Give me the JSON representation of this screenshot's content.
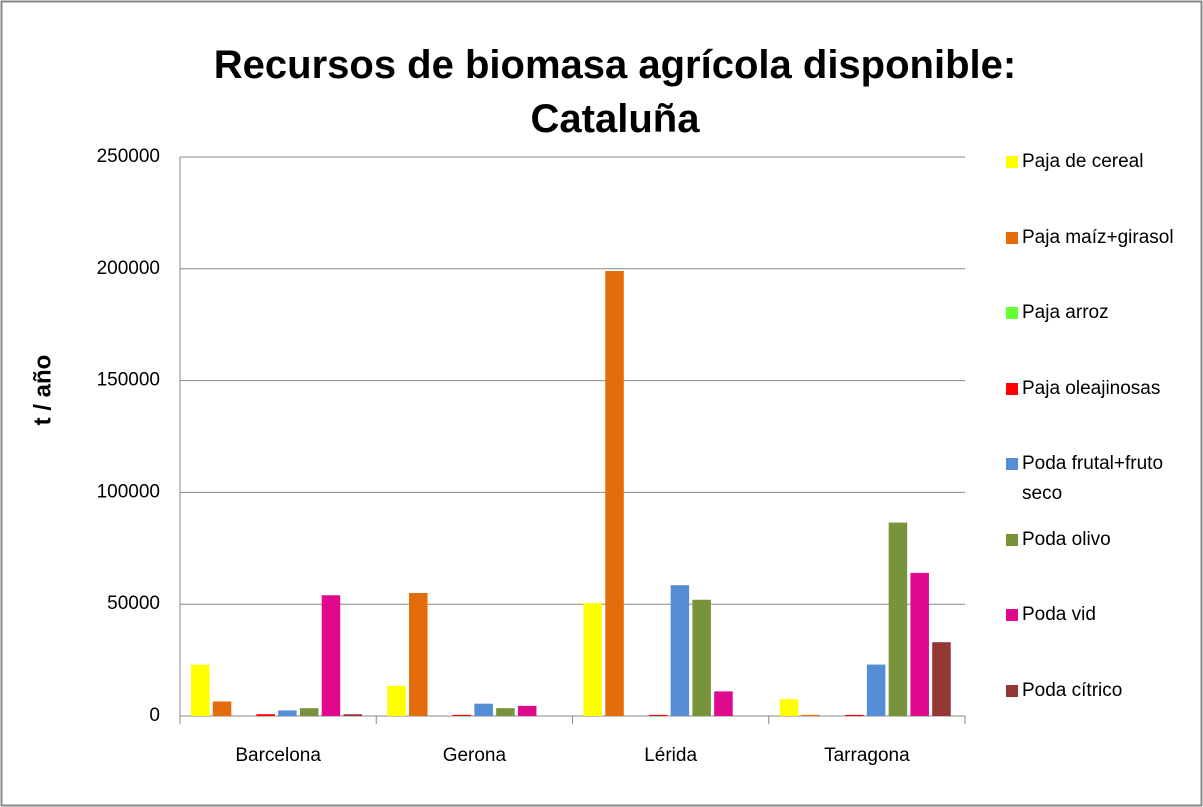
{
  "chart_data": {
    "type": "bar",
    "title": "Recursos de biomasa agrícola disponible: Cataluña",
    "y_label": "t / año",
    "categories": [
      "Barcelona",
      "Gerona",
      "Lérida",
      "Tarragona"
    ],
    "series": [
      {
        "name": "Paja de cereal",
        "color": "#ffff00",
        "values": [
          23000,
          13500,
          50500,
          7500
        ]
      },
      {
        "name": "Paja maíz+girasol",
        "color": "#e46c0a",
        "values": [
          6500,
          55000,
          199000,
          500
        ]
      },
      {
        "name": "Paja arroz",
        "color": "#66ff33",
        "values": [
          0,
          0,
          0,
          0
        ]
      },
      {
        "name": "Paja oleajinosas",
        "color": "#ff0000",
        "values": [
          800,
          500,
          500,
          500
        ]
      },
      {
        "name": "Poda frutal+fruto seco",
        "color": "#558ed5",
        "values": [
          2500,
          5500,
          58500,
          23000
        ]
      },
      {
        "name": "Poda olivo",
        "color": "#77933c",
        "values": [
          3500,
          3500,
          52000,
          86500
        ]
      },
      {
        "name": "Poda vid",
        "color": "#e0088c",
        "values": [
          54000,
          4500,
          11000,
          64000
        ]
      },
      {
        "name": "Poda cítrico",
        "color": "#953735",
        "values": [
          800,
          0,
          0,
          33000
        ]
      }
    ],
    "ylim": [
      0,
      250000
    ],
    "yticks": [
      0,
      50000,
      100000,
      150000,
      200000,
      250000
    ],
    "grid": true
  }
}
